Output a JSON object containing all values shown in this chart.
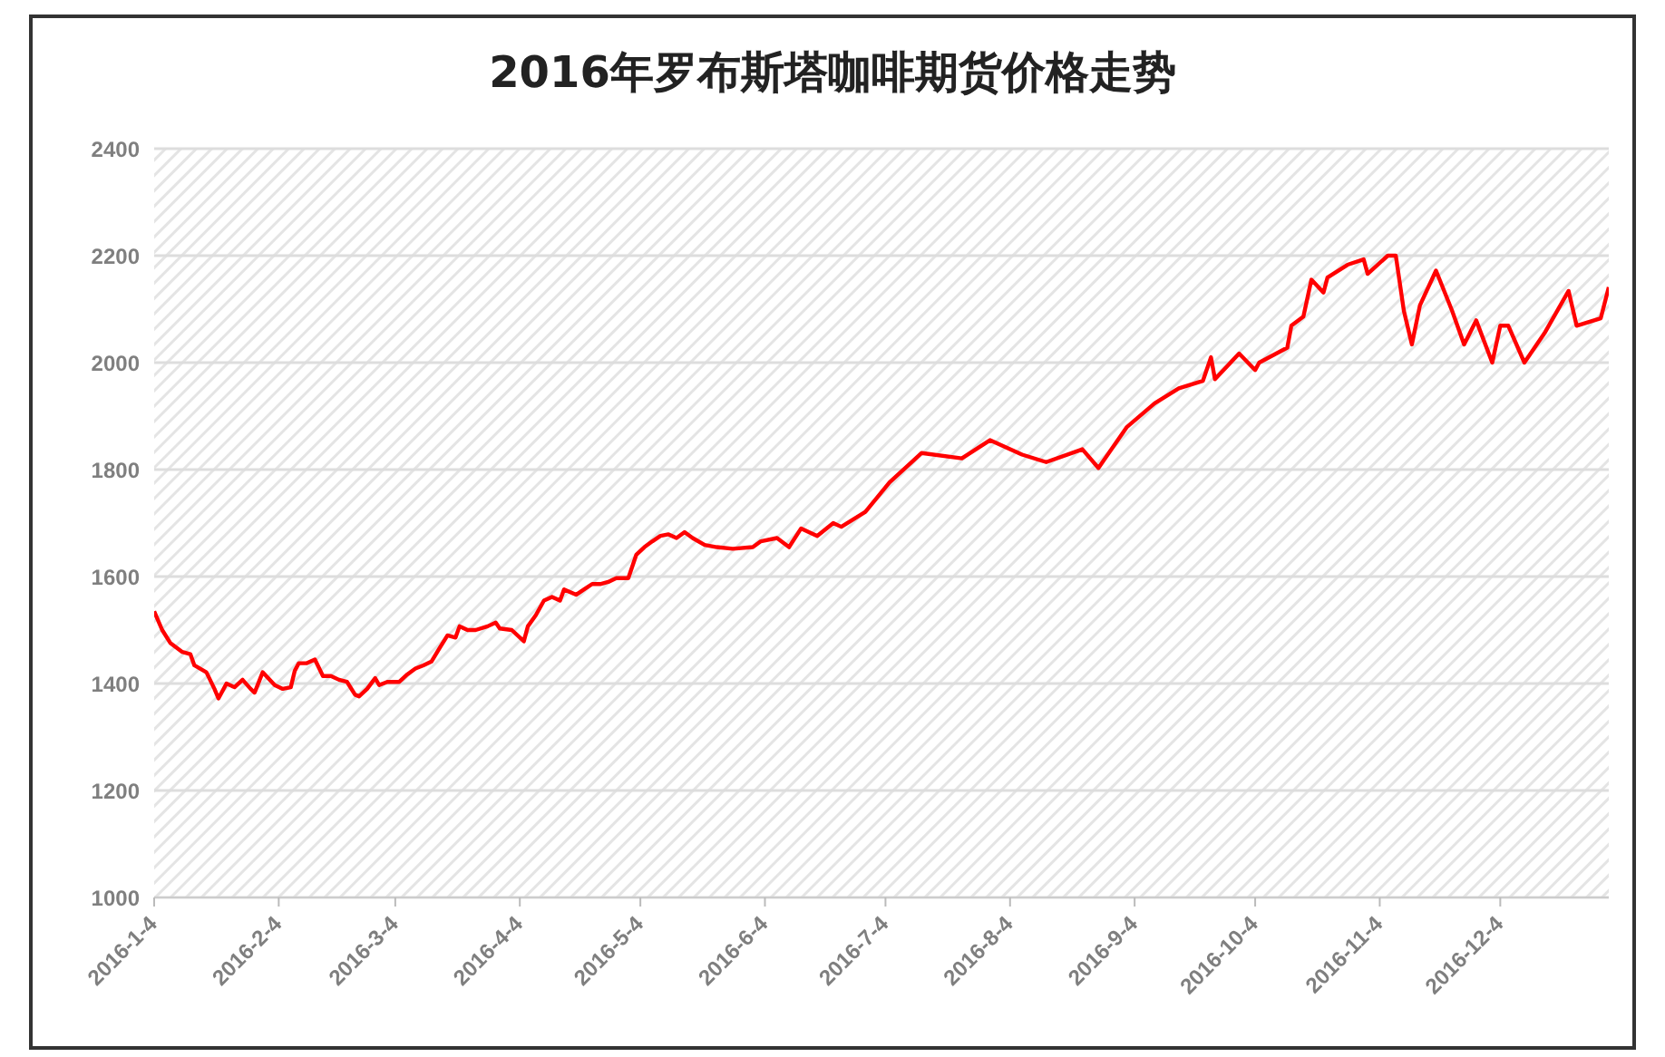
{
  "chart_data": {
    "type": "line",
    "title": "2016年罗布斯塔咖啡期货价格走势",
    "x": [
      "2016-01-04",
      "2016-01-06",
      "2016-01-08",
      "2016-01-11",
      "2016-01-13",
      "2016-01-14",
      "2016-01-17",
      "2016-01-19",
      "2016-01-20",
      "2016-01-22",
      "2016-01-24",
      "2016-01-26",
      "2016-01-28",
      "2016-01-29",
      "2016-01-31",
      "2016-02-03",
      "2016-02-05",
      "2016-02-07",
      "2016-02-08",
      "2016-02-09",
      "2016-02-11",
      "2016-02-13",
      "2016-02-15",
      "2016-02-17",
      "2016-02-19",
      "2016-02-21",
      "2016-02-23",
      "2016-02-24",
      "2016-02-26",
      "2016-02-28",
      "2016-02-29",
      "2016-03-02",
      "2016-03-05",
      "2016-03-07",
      "2016-03-09",
      "2016-03-11",
      "2016-03-13",
      "2016-03-15",
      "2016-03-17",
      "2016-03-19",
      "2016-03-20",
      "2016-03-22",
      "2016-03-24",
      "2016-03-27",
      "2016-03-29",
      "2016-03-30",
      "2016-04-02",
      "2016-04-05",
      "2016-04-06",
      "2016-04-08",
      "2016-04-10",
      "2016-04-12",
      "2016-04-14",
      "2016-04-15",
      "2016-04-18",
      "2016-04-20",
      "2016-04-22",
      "2016-04-24",
      "2016-04-26",
      "2016-04-28",
      "2016-05-01",
      "2016-05-03",
      "2016-05-05",
      "2016-05-07",
      "2016-05-09",
      "2016-05-11",
      "2016-05-13",
      "2016-05-15",
      "2016-05-17",
      "2016-05-20",
      "2016-05-23",
      "2016-05-27",
      "2016-06-01",
      "2016-06-03",
      "2016-06-07",
      "2016-06-10",
      "2016-06-13",
      "2016-06-17",
      "2016-06-21",
      "2016-06-23",
      "2016-06-29",
      "2016-07-05",
      "2016-07-13",
      "2016-07-23",
      "2016-07-30",
      "2016-08-07",
      "2016-08-13",
      "2016-08-22",
      "2016-08-26",
      "2016-09-02",
      "2016-09-09",
      "2016-09-15",
      "2016-09-21",
      "2016-09-23",
      "2016-09-24",
      "2016-09-30",
      "2016-10-04",
      "2016-10-05",
      "2016-10-12",
      "2016-10-13",
      "2016-10-16",
      "2016-10-18",
      "2016-10-21",
      "2016-10-22",
      "2016-10-27",
      "2016-10-31",
      "2016-11-01",
      "2016-11-06",
      "2016-11-08",
      "2016-11-10",
      "2016-11-12",
      "2016-11-14",
      "2016-11-18",
      "2016-11-22",
      "2016-11-25",
      "2016-11-28",
      "2016-12-02",
      "2016-12-04",
      "2016-12-06",
      "2016-12-10",
      "2016-12-15",
      "2016-12-21",
      "2016-12-23",
      "2016-12-29",
      "2016-12-31"
    ],
    "series": [
      {
        "color": "#ff0000",
        "values": [
          1535,
          1500,
          1476,
          1459,
          1455,
          1434,
          1421,
          1390,
          1372,
          1400,
          1393,
          1407,
          1390,
          1383,
          1421,
          1397,
          1390,
          1393,
          1424,
          1438,
          1438,
          1445,
          1414,
          1414,
          1407,
          1403,
          1379,
          1376,
          1390,
          1410,
          1397,
          1403,
          1403,
          1417,
          1428,
          1434,
          1441,
          1466,
          1490,
          1486,
          1507,
          1500,
          1500,
          1507,
          1514,
          1503,
          1500,
          1479,
          1507,
          1528,
          1555,
          1562,
          1555,
          1576,
          1566,
          1576,
          1586,
          1586,
          1590,
          1597,
          1597,
          1641,
          1655,
          1666,
          1676,
          1679,
          1672,
          1683,
          1672,
          1659,
          1655,
          1652,
          1655,
          1666,
          1672,
          1655,
          1690,
          1676,
          1700,
          1693,
          1721,
          1776,
          1831,
          1821,
          1855,
          1828,
          1814,
          1838,
          1803,
          1879,
          1924,
          1952,
          1966,
          2010,
          1969,
          2017,
          1986,
          2000,
          2028,
          2069,
          2086,
          2155,
          2131,
          2159,
          2183,
          2193,
          2166,
          2200,
          2200,
          2097,
          2034,
          2107,
          2172,
          2097,
          2034,
          2079,
          2000,
          2069,
          2069,
          2000,
          2055,
          2134,
          2069,
          2083,
          2141
        ]
      }
    ],
    "xlim": [
      "2016-01-04",
      "2016-12-31"
    ],
    "xticks": [
      {
        "value": "2016-01-04",
        "label": "2016-1-4"
      },
      {
        "value": "2016-02-04",
        "label": "2016-2-4"
      },
      {
        "value": "2016-03-04",
        "label": "2016-3-4"
      },
      {
        "value": "2016-04-04",
        "label": "2016-4-4"
      },
      {
        "value": "2016-05-04",
        "label": "2016-5-4"
      },
      {
        "value": "2016-06-04",
        "label": "2016-6-4"
      },
      {
        "value": "2016-07-04",
        "label": "2016-7-4"
      },
      {
        "value": "2016-08-04",
        "label": "2016-8-4"
      },
      {
        "value": "2016-09-04",
        "label": "2016-9-4"
      },
      {
        "value": "2016-10-04",
        "label": "2016-10-4"
      },
      {
        "value": "2016-11-04",
        "label": "2016-11-4"
      },
      {
        "value": "2016-12-04",
        "label": "2016-12-4"
      }
    ],
    "ylim": [
      1000,
      2400
    ],
    "yticks": [
      1000,
      1200,
      1400,
      1600,
      1800,
      2000,
      2200,
      2400
    ],
    "grid": "y",
    "legend": false,
    "marker": "none",
    "line_style": "solid"
  }
}
